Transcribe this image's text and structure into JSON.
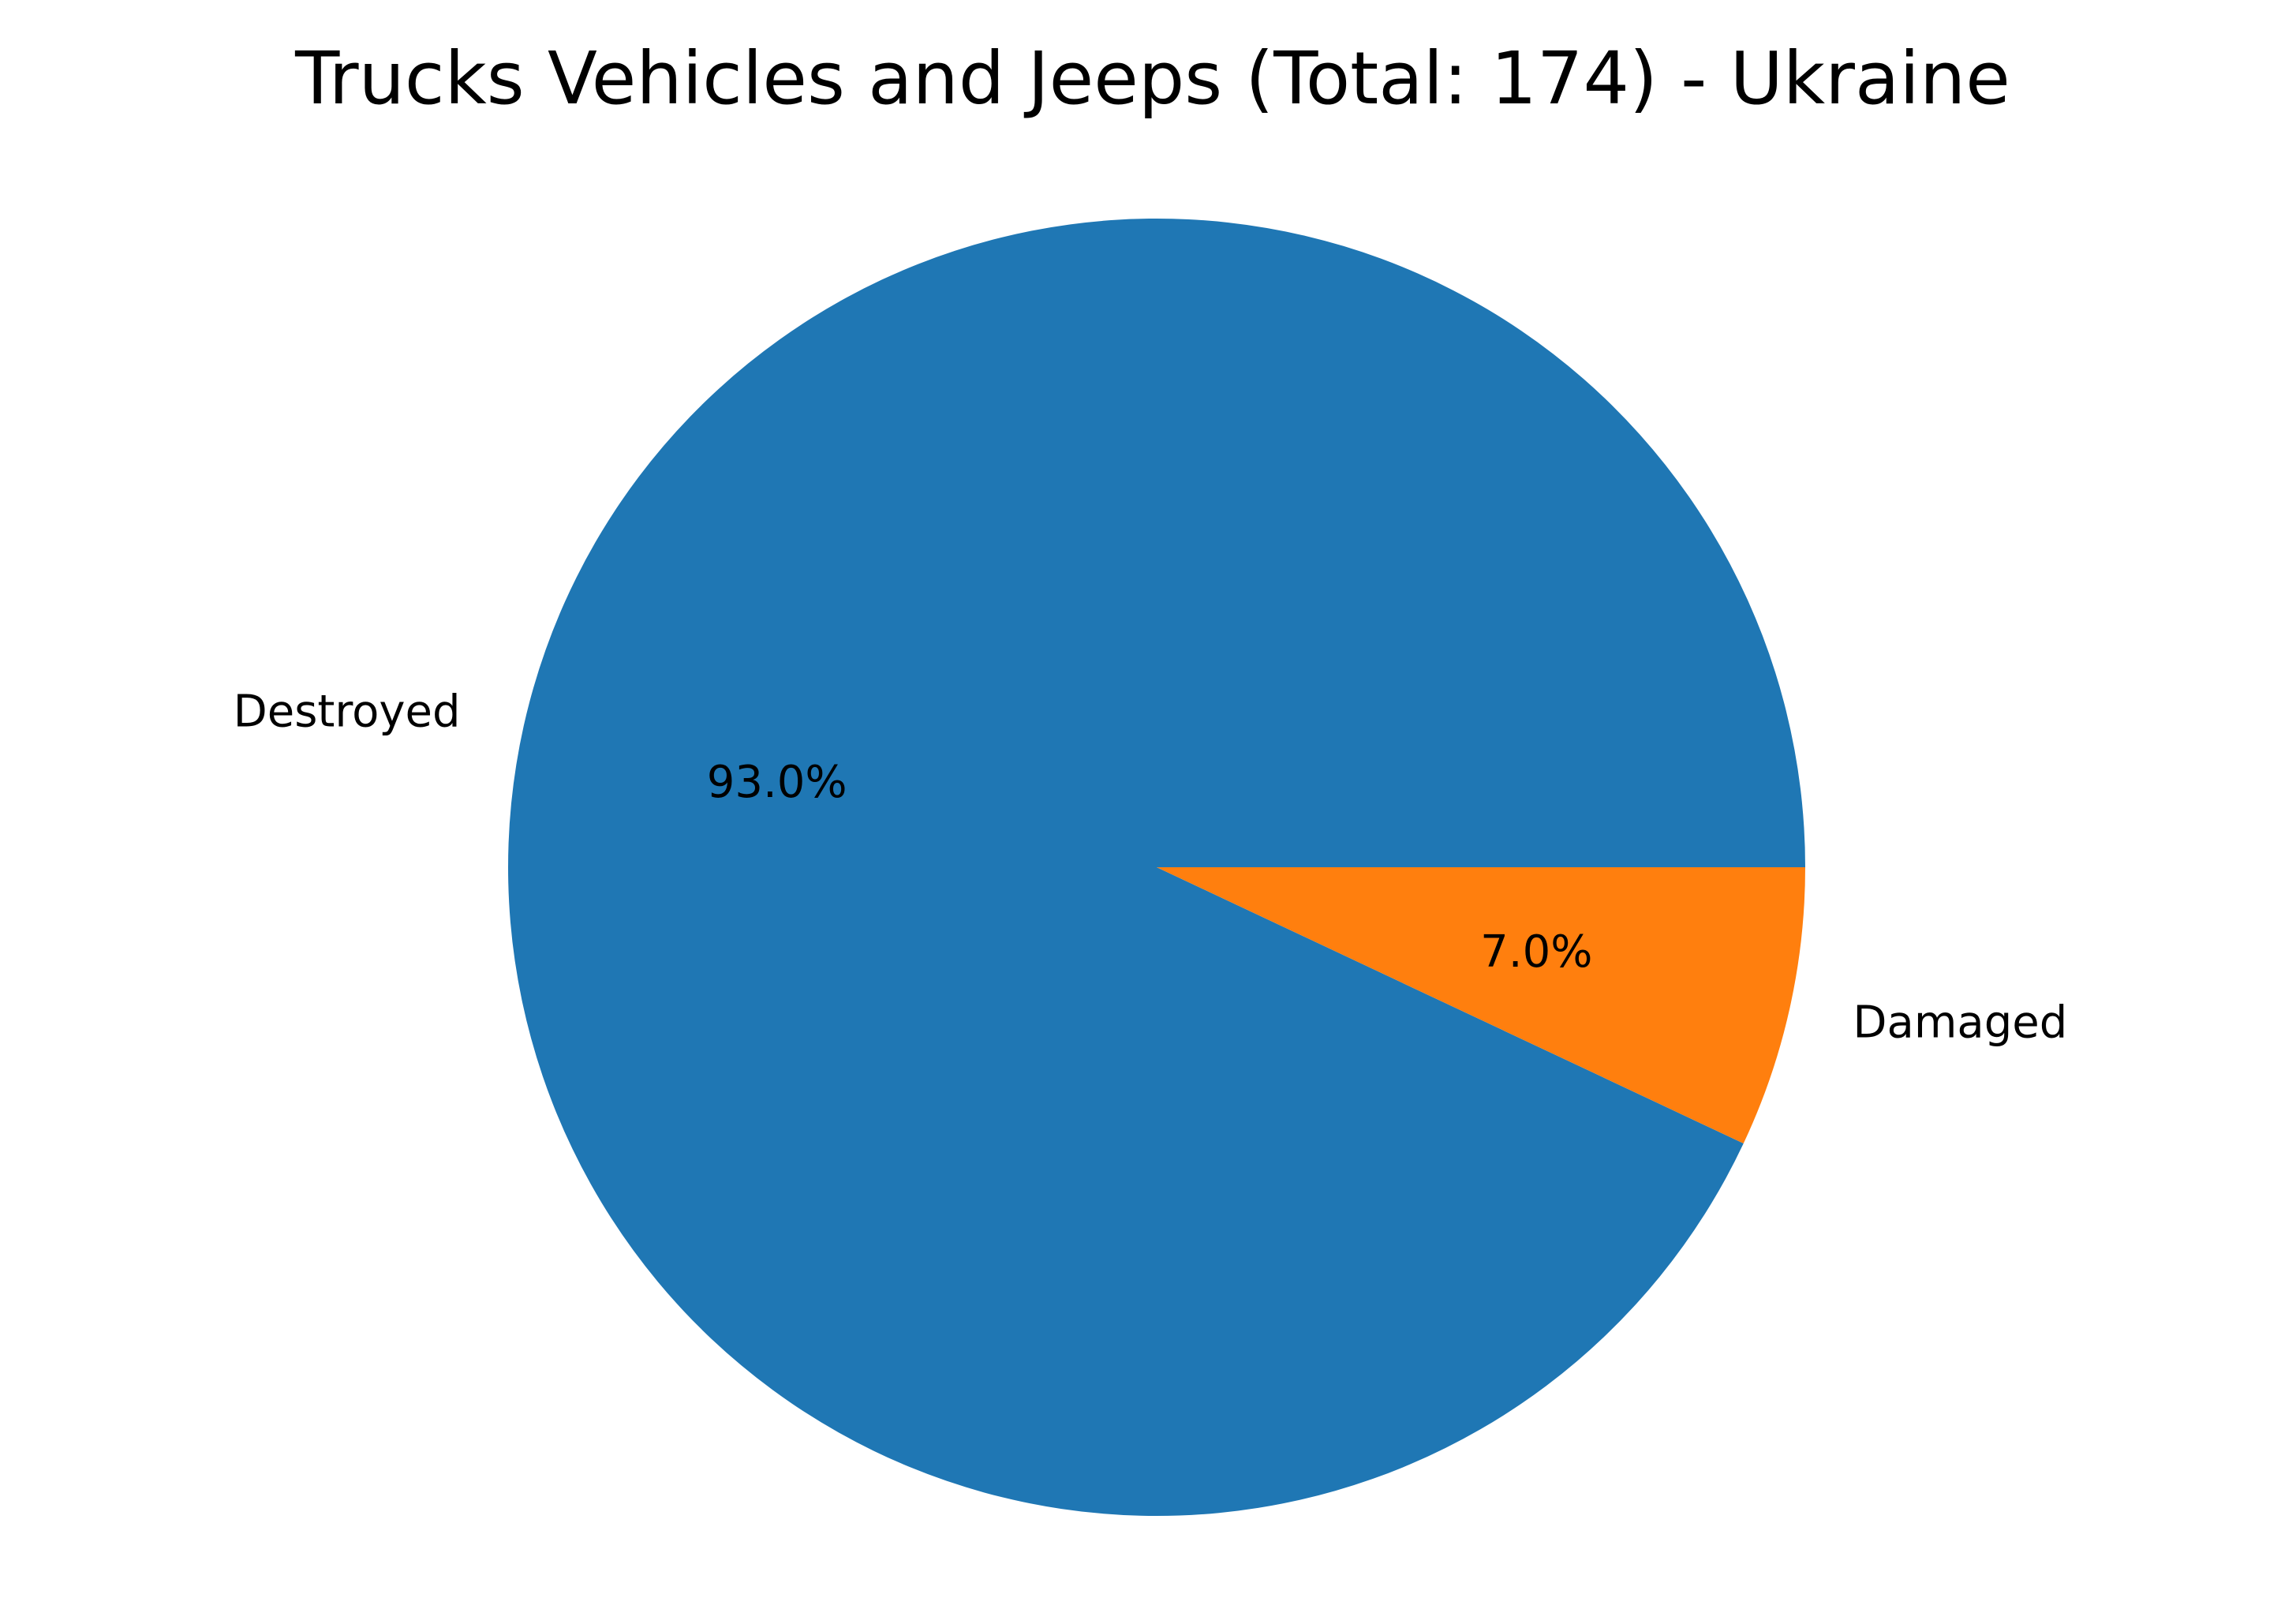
{
  "chart_data": {
    "type": "pie",
    "title": "Trucks Vehicles and Jeeps (Total: 174) - Ukraine",
    "slices": [
      {
        "label": "Destroyed",
        "value": 93.0,
        "pct_label": "93.0%",
        "color": "#1f77b4"
      },
      {
        "label": "Damaged",
        "value": 7.0,
        "pct_label": "7.0%",
        "color": "#ff7f0e"
      }
    ],
    "start_angle_deg": 0,
    "direction": "counterclockwise",
    "legend": "none"
  }
}
